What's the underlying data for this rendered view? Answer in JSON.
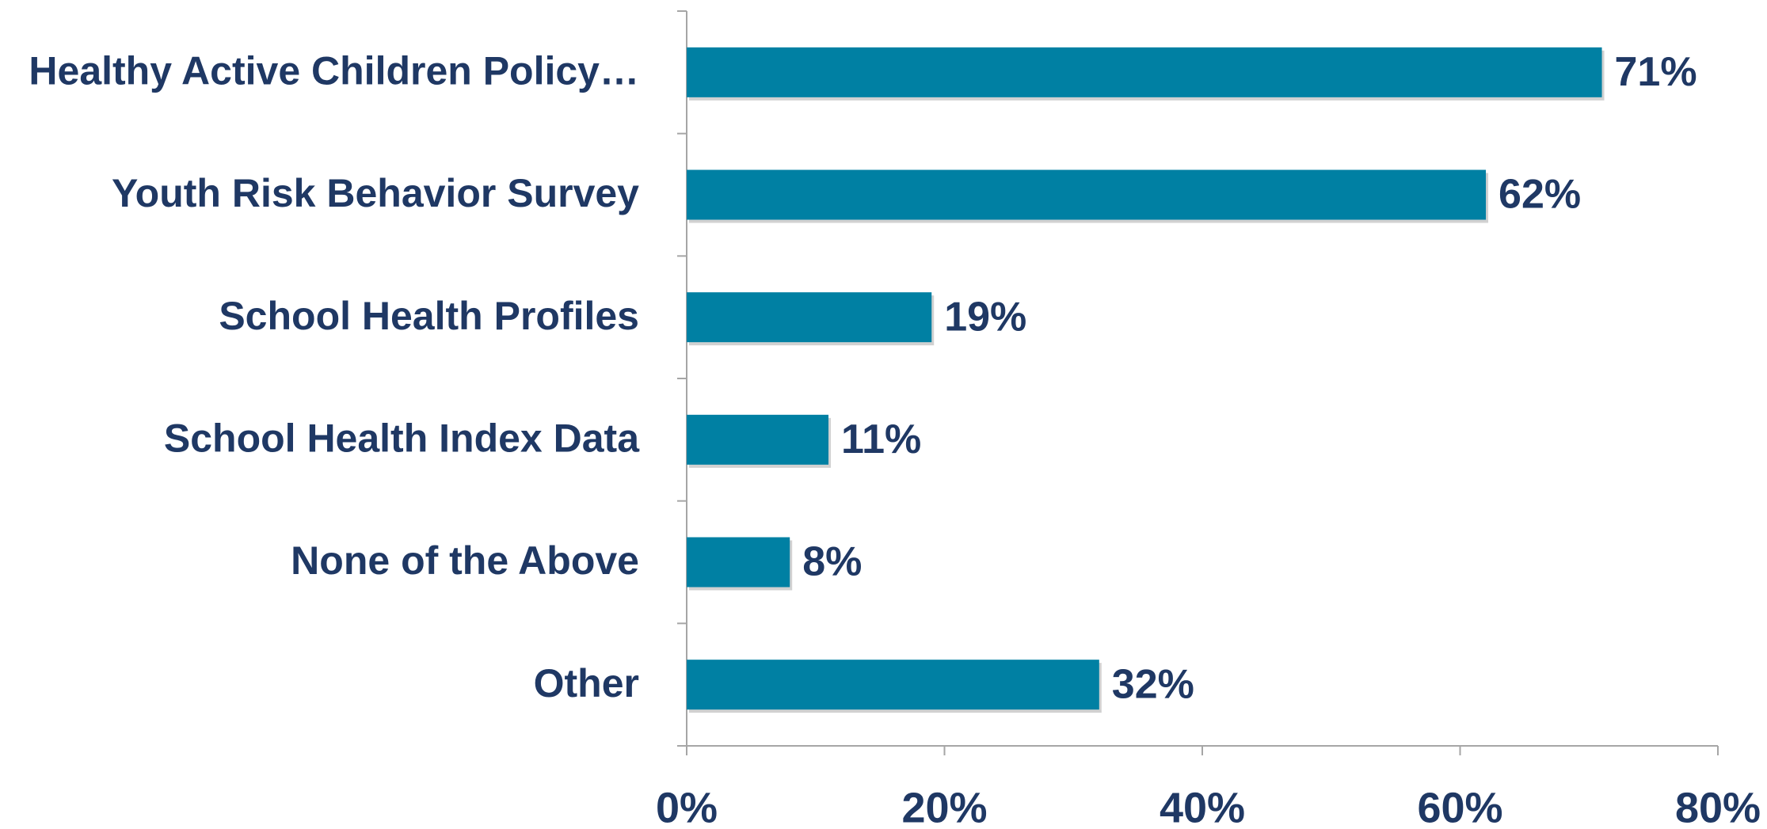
{
  "chart_data": {
    "type": "bar",
    "orientation": "horizontal",
    "categories": [
      "Healthy Active Children Policy…",
      "Youth Risk Behavior Survey",
      "School Health Profiles",
      "School Health Index Data",
      "None of the Above",
      "Other"
    ],
    "values": [
      71,
      62,
      19,
      11,
      8,
      32
    ],
    "value_labels": [
      "71%",
      "62%",
      "19%",
      "11%",
      "8%",
      "32%"
    ],
    "color": "#0080a3",
    "xlim": [
      0,
      80
    ],
    "xticks": [
      {
        "value": 0,
        "label": "0%"
      },
      {
        "value": 20,
        "label": "20%"
      },
      {
        "value": 40,
        "label": "40%"
      },
      {
        "value": 60,
        "label": "60%"
      },
      {
        "value": 80,
        "label": "80%"
      }
    ],
    "grid": false
  }
}
